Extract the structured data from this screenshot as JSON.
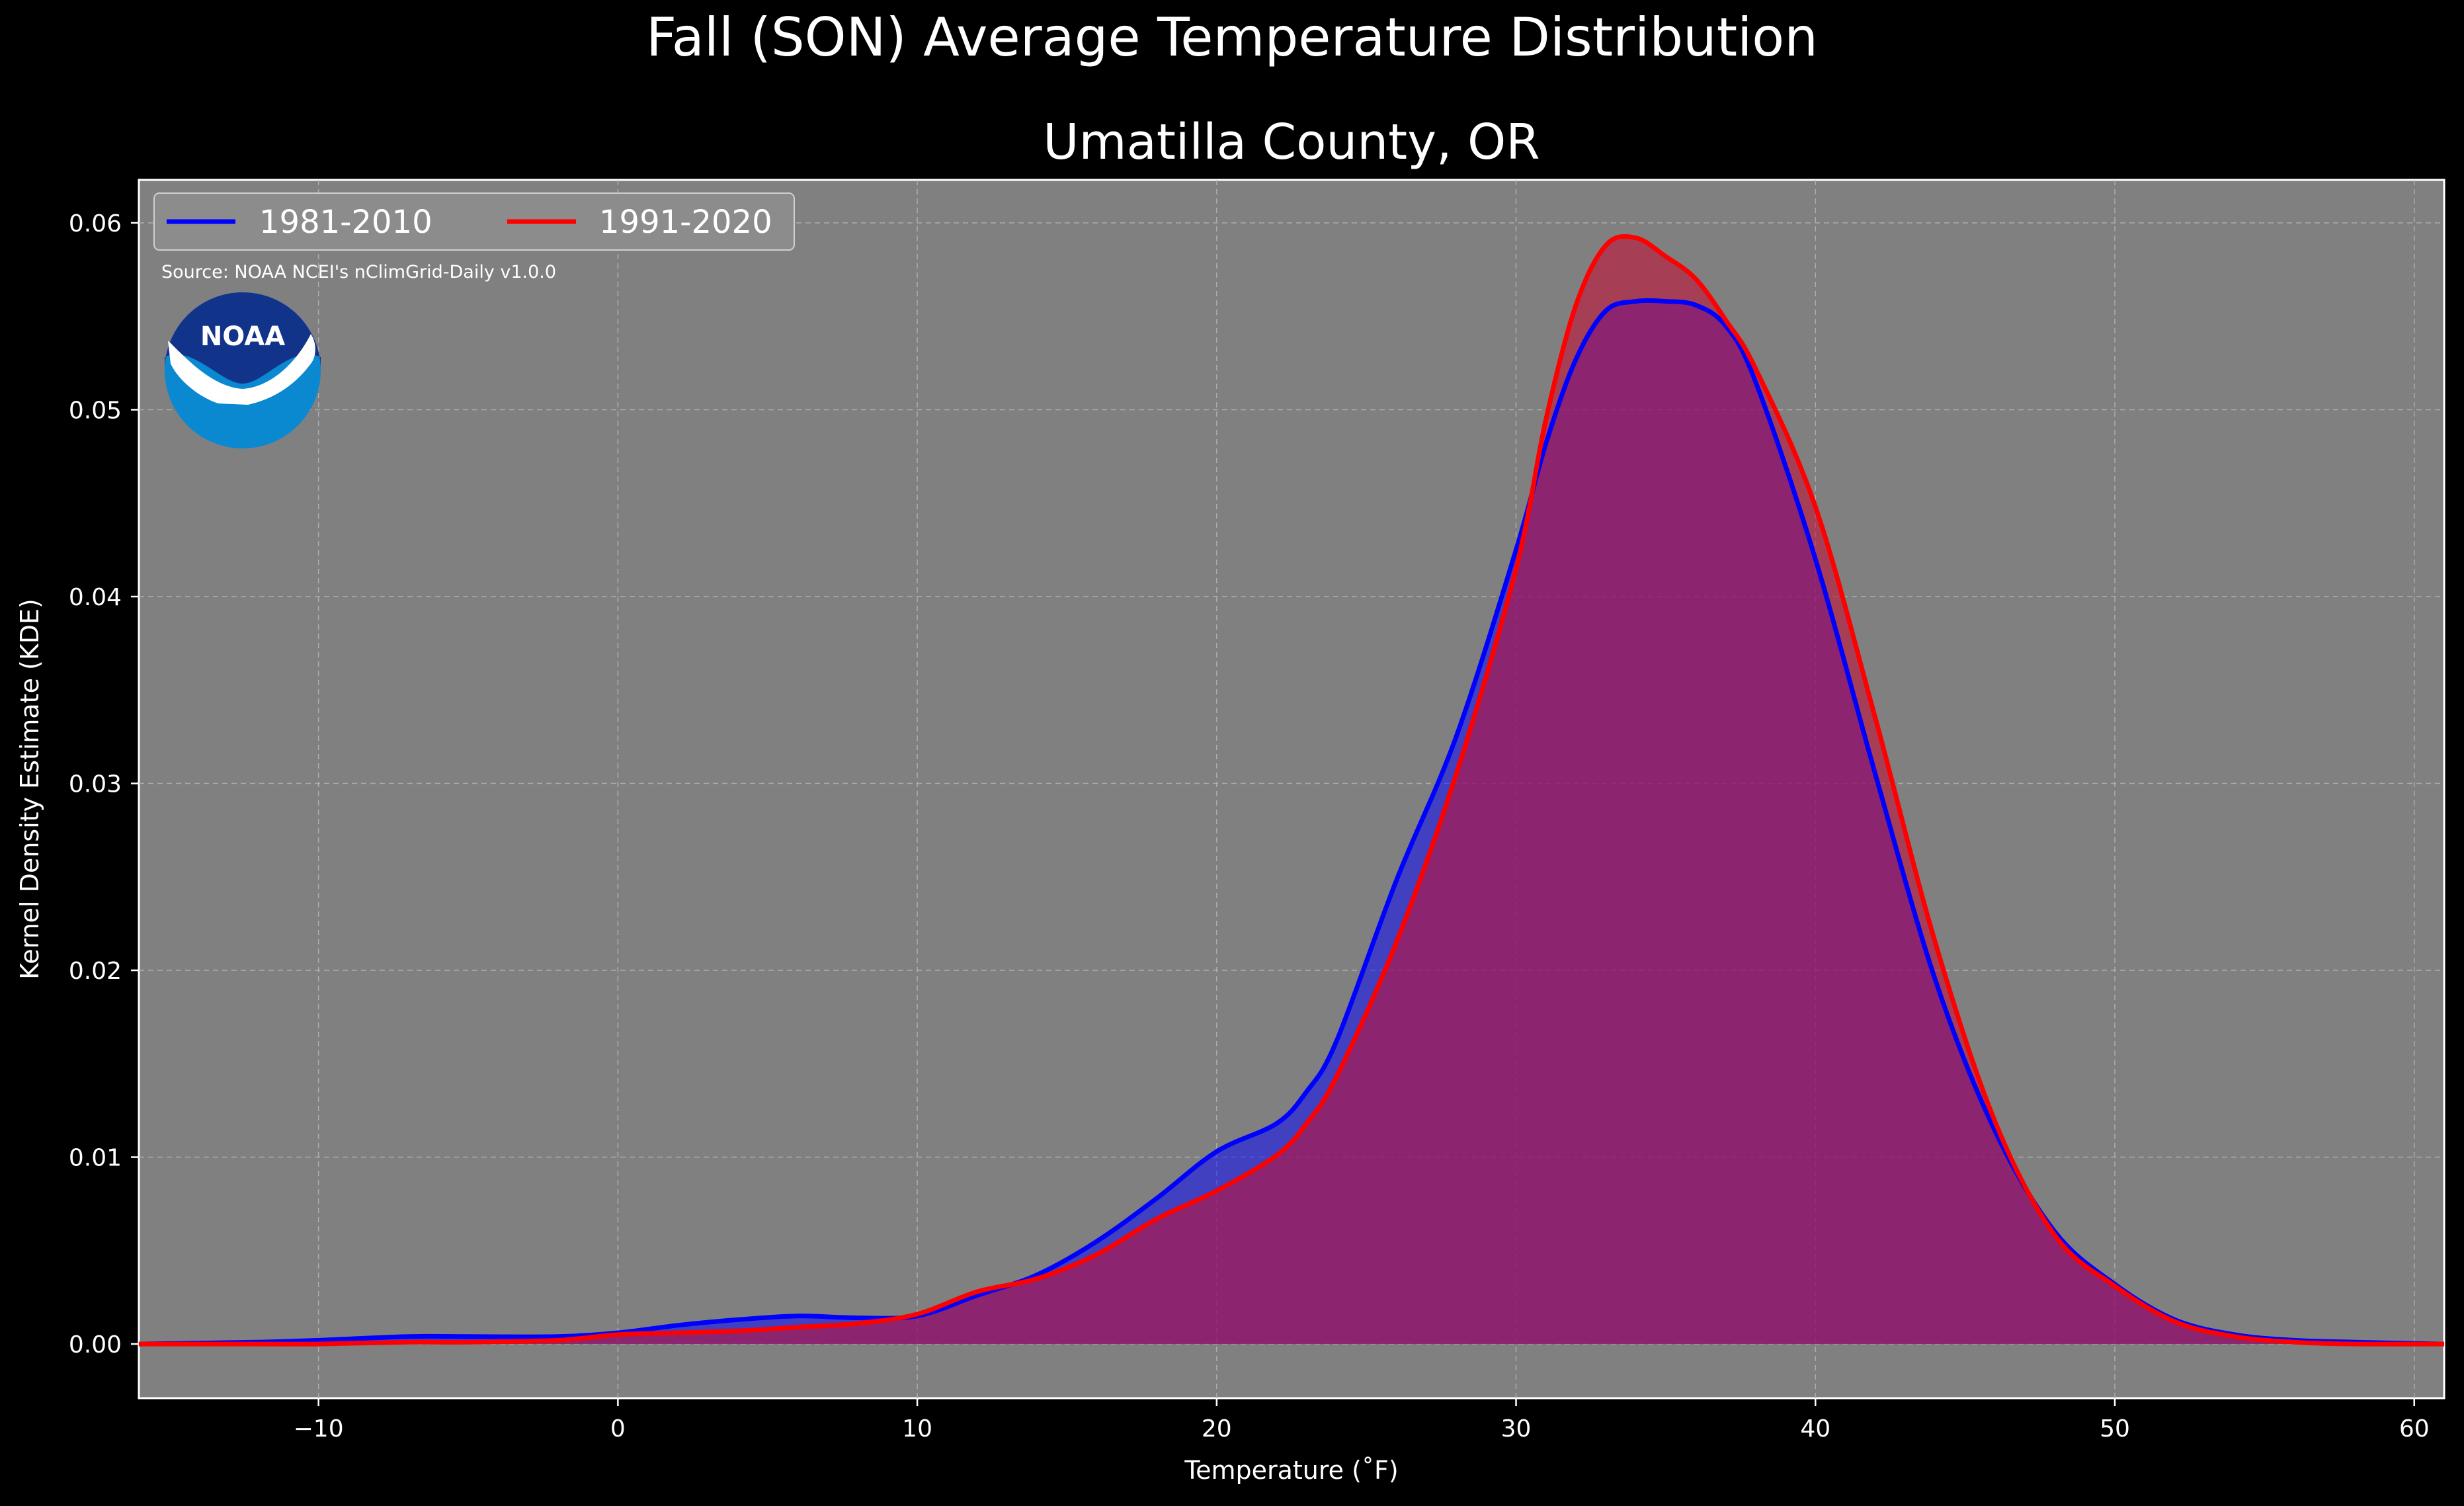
{
  "figure": {
    "suptitle": "Fall (SON) Average Temperature Distribution",
    "title": "Umatilla County, OR",
    "source": "Source: NOAA NCEI's nClimGrid-Daily v1.0.0",
    "logo_text": "NOAA",
    "background_color": "#000000",
    "plot_background": "#808080"
  },
  "chart_data": {
    "type": "area",
    "title": "Umatilla County, OR",
    "xlabel": "Temperature ($^\\circ$F)",
    "xlabel_display": "Temperature (˚F)",
    "ylabel": "Kernel Density Estimate (KDE)",
    "xlim": [
      -16,
      61
    ],
    "ylim": [
      -0.0029,
      0.0623
    ],
    "xticks": [
      -10,
      0,
      10,
      20,
      30,
      40,
      50,
      60
    ],
    "xtick_labels": [
      "−10",
      "0",
      "10",
      "20",
      "30",
      "40",
      "50",
      "60"
    ],
    "yticks": [
      0.0,
      0.01,
      0.02,
      0.03,
      0.04,
      0.05,
      0.06
    ],
    "ytick_labels": [
      "0.00",
      "0.01",
      "0.02",
      "0.03",
      "0.04",
      "0.05",
      "0.06"
    ],
    "grid": true,
    "legend_position": "upper-left",
    "series": [
      {
        "name": "1981-2010",
        "color": "#0000ff",
        "fill": "#0000ff",
        "fill_opacity": 0.5,
        "x": [
          -16,
          -12,
          -10,
          -7,
          -5,
          -2,
          0,
          2,
          4,
          6,
          8,
          10,
          12,
          14,
          16,
          18,
          20,
          22,
          23,
          24,
          26,
          28,
          30,
          31,
          32,
          33,
          34,
          35,
          36,
          37,
          38,
          40,
          42,
          44,
          46,
          48,
          50,
          52,
          54,
          56,
          58,
          61
        ],
        "y": [
          0.0,
          0.0001,
          0.0002,
          0.0004,
          0.0004,
          0.0004,
          0.0006,
          0.001,
          0.0013,
          0.0015,
          0.0014,
          0.0015,
          0.0026,
          0.0037,
          0.0055,
          0.0078,
          0.0103,
          0.0118,
          0.0135,
          0.0162,
          0.0248,
          0.0325,
          0.0425,
          0.0482,
          0.0527,
          0.0553,
          0.0558,
          0.0558,
          0.0556,
          0.0545,
          0.0515,
          0.042,
          0.0305,
          0.0195,
          0.0114,
          0.006,
          0.0032,
          0.0013,
          0.0005,
          0.0002,
          0.0001,
          0.0
        ]
      },
      {
        "name": "1991-2020",
        "color": "#ff0000",
        "fill": "#c0123a",
        "fill_opacity": 0.6,
        "x": [
          -16,
          -12,
          -10,
          -7,
          -5,
          -2,
          0,
          2,
          4,
          6,
          8,
          10,
          12,
          14,
          16,
          18,
          20,
          22,
          23,
          24,
          26,
          28,
          30,
          31,
          32,
          33,
          34,
          35,
          36,
          37,
          38,
          40,
          42,
          44,
          46,
          48,
          50,
          52,
          54,
          56,
          58,
          61
        ],
        "y": [
          0.0,
          0.0,
          0.0,
          0.0001,
          0.0001,
          0.0002,
          0.0005,
          0.0006,
          0.0007,
          0.0009,
          0.0011,
          0.0016,
          0.0028,
          0.0035,
          0.0048,
          0.0067,
          0.0082,
          0.0101,
          0.0118,
          0.0143,
          0.0215,
          0.0305,
          0.0415,
          0.0495,
          0.0556,
          0.0588,
          0.0592,
          0.0582,
          0.057,
          0.0548,
          0.0522,
          0.0448,
          0.0335,
          0.0215,
          0.0119,
          0.0058,
          0.0031,
          0.0012,
          0.0004,
          0.0001,
          0.0,
          0.0
        ]
      }
    ]
  }
}
